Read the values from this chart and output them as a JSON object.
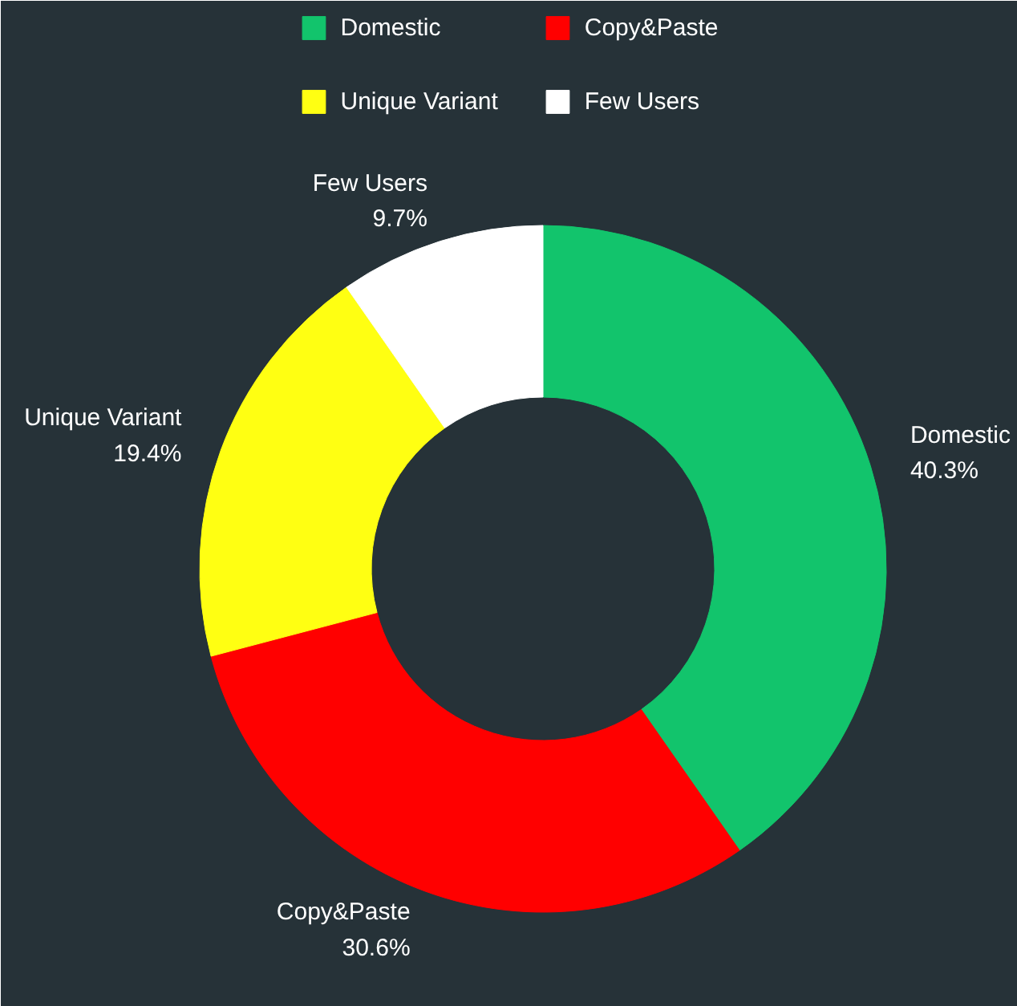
{
  "chart_data": {
    "type": "donut",
    "categories": [
      "Domestic",
      "Copy&Paste",
      "Unique Variant",
      "Few Users"
    ],
    "values": [
      40.3,
      30.6,
      19.4,
      9.7
    ],
    "colors": [
      "#12c46c",
      "#ff0000",
      "#ffff12",
      "#ffffff"
    ],
    "value_labels": [
      "40.3%",
      "30.6%",
      "19.4%",
      "9.7%"
    ],
    "legend": "top"
  }
}
